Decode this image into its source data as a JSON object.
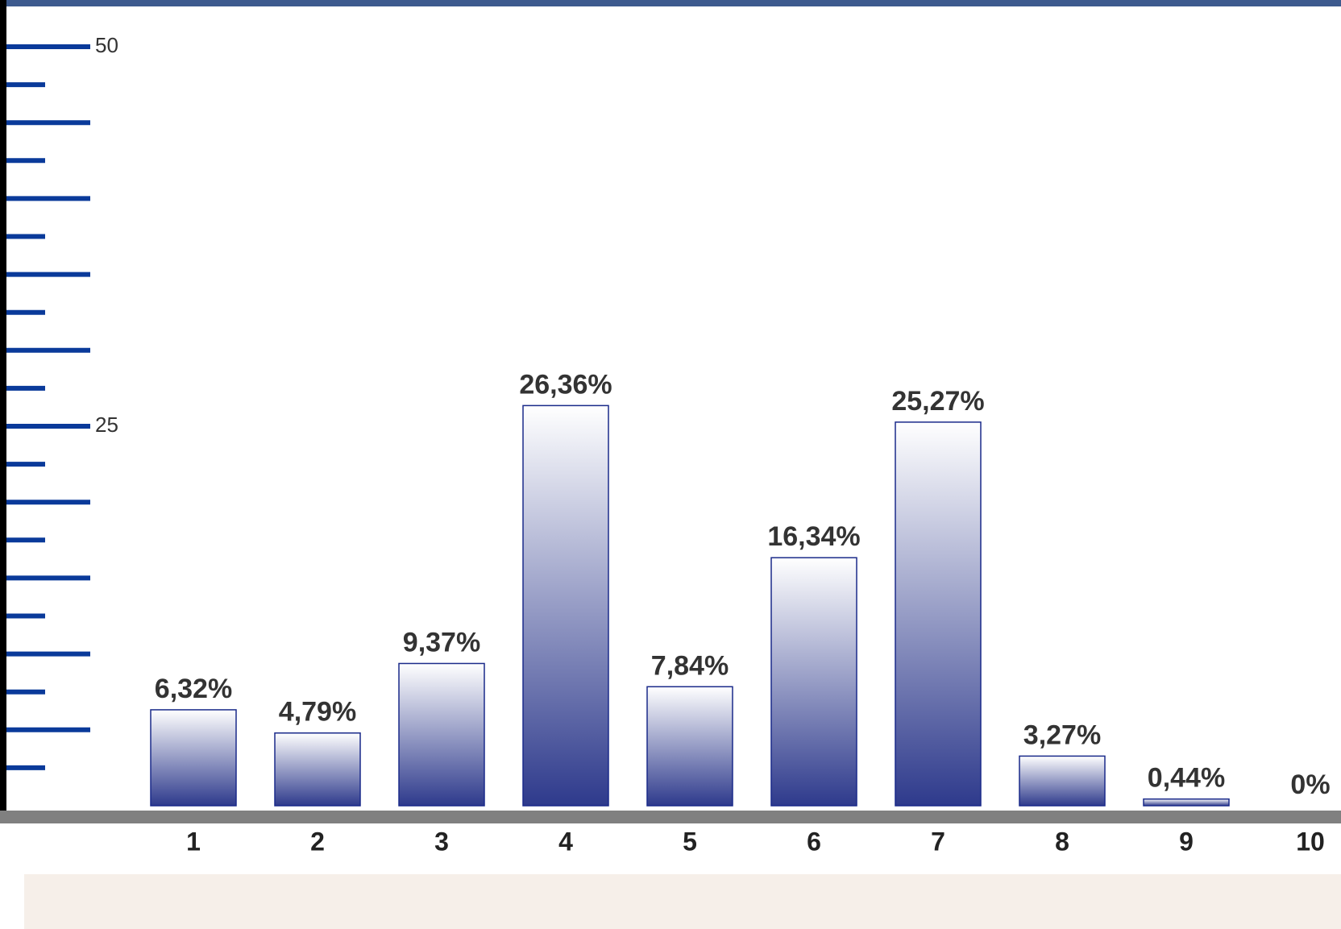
{
  "chart_data": {
    "type": "bar",
    "categories": [
      "1",
      "2",
      "3",
      "4",
      "5",
      "6",
      "7",
      "8",
      "9",
      "10"
    ],
    "values": [
      6.32,
      4.79,
      9.37,
      26.36,
      7.84,
      16.34,
      25.27,
      3.27,
      0.44,
      0
    ],
    "value_labels": [
      "6,32%",
      "4,79%",
      "9,37%",
      "26,36%",
      "7,84%",
      "16,34%",
      "25,27%",
      "3,27%",
      "0,44%",
      "0%"
    ],
    "color": "#2e3a8c",
    "ylim": [
      0,
      50
    ],
    "yticks": [
      25,
      50
    ],
    "major_yticks": [
      5,
      10,
      15,
      20,
      30,
      35,
      40,
      45
    ],
    "minor_yticks": [
      2.5,
      7.5,
      12.5,
      17.5,
      22.5,
      27.5,
      32.5,
      37.5,
      42.5,
      47.5
    ]
  }
}
